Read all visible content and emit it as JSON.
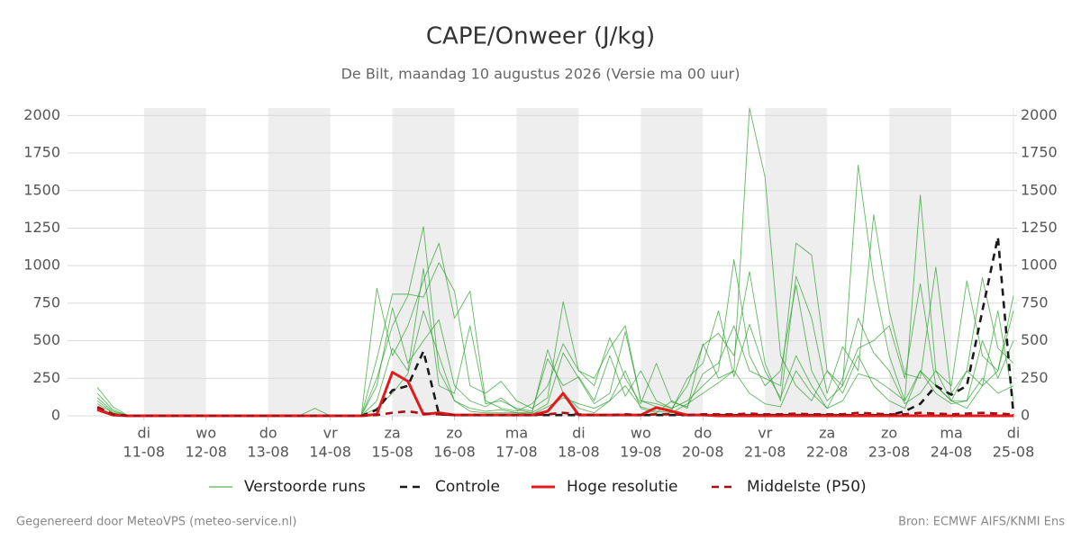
{
  "chart_data": {
    "type": "line",
    "title": "CAPE/Onweer (J/kg)",
    "subtitle": "De Bilt, maandag 10 augustus 2026 (Versie ma 00 uur)",
    "footer_left": "Gegenereerd door MeteoVPS (meteo-service.nl)",
    "footer_right": "Bron: ECMWF AIFS/KNMI Ens",
    "x": [
      0.25,
      0.5,
      0.75,
      1,
      1.25,
      1.5,
      1.75,
      2,
      2.25,
      2.5,
      2.75,
      3,
      3.25,
      3.5,
      3.75,
      4,
      4.25,
      4.5,
      4.75,
      5,
      5.25,
      5.5,
      5.75,
      6,
      6.25,
      6.5,
      6.75,
      7,
      7.25,
      7.5,
      7.75,
      8,
      8.25,
      8.5,
      8.75,
      9,
      9.25,
      9.5,
      9.75,
      10,
      10.25,
      10.5,
      10.75,
      11,
      11.25,
      11.5,
      11.75,
      12,
      12.25,
      12.5,
      12.75,
      13,
      13.25,
      13.5,
      13.75,
      14,
      14.25,
      14.5,
      14.75,
      15
    ],
    "xlim": [
      -0.23,
      15
    ],
    "xticks": [
      {
        "value": 1,
        "label": "11-08",
        "weekday": "di"
      },
      {
        "value": 2,
        "label": "12-08",
        "weekday": "wo"
      },
      {
        "value": 3,
        "label": "13-08",
        "weekday": "do"
      },
      {
        "value": 4,
        "label": "14-08",
        "weekday": "vr"
      },
      {
        "value": 5,
        "label": "15-08",
        "weekday": "za"
      },
      {
        "value": 6,
        "label": "16-08",
        "weekday": "zo"
      },
      {
        "value": 7,
        "label": "17-08",
        "weekday": "ma"
      },
      {
        "value": 8,
        "label": "18-08",
        "weekday": "di"
      },
      {
        "value": 9,
        "label": "19-08",
        "weekday": "wo"
      },
      {
        "value": 10,
        "label": "20-08",
        "weekday": "do"
      },
      {
        "value": 11,
        "label": "21-08",
        "weekday": "vr"
      },
      {
        "value": 12,
        "label": "22-08",
        "weekday": "za"
      },
      {
        "value": 13,
        "label": "23-08",
        "weekday": "zo"
      },
      {
        "value": 14,
        "label": "24-08",
        "weekday": "ma"
      },
      {
        "value": 15,
        "label": "25-08",
        "weekday": "di"
      }
    ],
    "ylim": [
      0,
      2050
    ],
    "yticks": [
      0,
      250,
      500,
      750,
      1000,
      1250,
      1500,
      1750,
      2000
    ],
    "y2lim": [
      0,
      2050
    ],
    "y2ticks": [
      0,
      250,
      500,
      750,
      1000,
      1250,
      1500,
      1750,
      2000
    ],
    "grid": true,
    "ensemble": {
      "name": "Verstoorde runs",
      "color": "#2ca02c",
      "members": [
        [
          190,
          60,
          0,
          0,
          0,
          0,
          0,
          0,
          0,
          0,
          0,
          0,
          0,
          0,
          0,
          0,
          0,
          0,
          250,
          600,
          800,
          1260,
          300,
          100,
          30,
          20,
          20,
          20,
          20,
          440,
          150,
          50,
          20,
          100,
          300,
          50,
          20,
          100,
          50,
          480,
          250,
          300,
          2050,
          1590,
          400,
          200,
          100,
          300,
          150,
          400,
          200,
          100,
          50,
          300,
          200,
          100,
          50,
          200,
          300,
          800
        ],
        [
          150,
          40,
          0,
          0,
          0,
          0,
          0,
          0,
          0,
          0,
          0,
          0,
          0,
          0,
          50,
          0,
          0,
          0,
          850,
          400,
          600,
          900,
          1150,
          650,
          830,
          100,
          50,
          30,
          80,
          200,
          480,
          300,
          200,
          520,
          250,
          80,
          350,
          90,
          60,
          280,
          350,
          600,
          300,
          250,
          200,
          1150,
          1070,
          300,
          200,
          1670,
          900,
          400,
          100,
          1470,
          300,
          200,
          900,
          400,
          300,
          700
        ],
        [
          120,
          30,
          0,
          0,
          0,
          0,
          0,
          0,
          0,
          0,
          0,
          0,
          0,
          0,
          0,
          0,
          0,
          0,
          380,
          810,
          810,
          790,
          1020,
          830,
          200,
          150,
          230,
          100,
          50,
          120,
          760,
          300,
          250,
          450,
          600,
          100,
          80,
          50,
          200,
          470,
          550,
          400,
          960,
          350,
          100,
          930,
          650,
          150,
          460,
          300,
          1340,
          700,
          280,
          250,
          990,
          150,
          300,
          920,
          450,
          350
        ],
        [
          80,
          20,
          0,
          0,
          0,
          0,
          0,
          0,
          0,
          0,
          0,
          0,
          0,
          0,
          0,
          0,
          0,
          0,
          100,
          450,
          300,
          980,
          200,
          150,
          600,
          80,
          100,
          50,
          30,
          380,
          200,
          260,
          100,
          400,
          130,
          300,
          100,
          50,
          100,
          200,
          300,
          1040,
          400,
          200,
          300,
          870,
          300,
          100,
          200,
          450,
          500,
          600,
          250,
          880,
          200,
          100,
          300,
          200,
          700,
          100
        ],
        [
          100,
          20,
          0,
          0,
          0,
          0,
          0,
          0,
          0,
          0,
          0,
          0,
          0,
          0,
          0,
          0,
          0,
          0,
          200,
          720,
          350,
          500,
          640,
          200,
          100,
          60,
          120,
          40,
          20,
          80,
          420,
          250,
          80,
          150,
          560,
          100,
          60,
          40,
          250,
          350,
          700,
          260,
          610,
          300,
          120,
          400,
          200,
          50,
          250,
          650,
          420,
          300,
          80,
          150,
          300,
          100,
          100,
          500,
          250,
          500
        ],
        [
          60,
          10,
          0,
          0,
          0,
          0,
          0,
          0,
          0,
          0,
          0,
          0,
          0,
          0,
          0,
          0,
          0,
          0,
          50,
          150,
          280,
          700,
          400,
          100,
          50,
          30,
          40,
          20,
          10,
          60,
          120,
          80,
          50,
          100,
          200,
          60,
          30,
          20,
          80,
          150,
          220,
          300,
          150,
          80,
          60,
          300,
          150,
          50,
          100,
          280,
          250,
          180,
          100,
          300,
          150,
          80,
          100,
          250,
          150,
          200
        ]
      ]
    },
    "series": [
      {
        "name": "Controle",
        "color": "#1a1a1a",
        "style": "dashed",
        "values": [
          50,
          5,
          0,
          0,
          0,
          0,
          0,
          0,
          0,
          0,
          0,
          0,
          0,
          0,
          0,
          0,
          0,
          0,
          40,
          170,
          200,
          430,
          10,
          5,
          5,
          5,
          5,
          5,
          5,
          5,
          5,
          5,
          5,
          5,
          5,
          5,
          5,
          5,
          5,
          5,
          5,
          5,
          5,
          5,
          5,
          5,
          5,
          5,
          5,
          5,
          5,
          5,
          30,
          80,
          200,
          140,
          200,
          700,
          1190,
          10
        ]
      },
      {
        "name": "Hoge resolutie",
        "color": "#e31a1c",
        "style": "solid",
        "values": [
          40,
          5,
          0,
          0,
          0,
          0,
          0,
          0,
          0,
          0,
          0,
          0,
          0,
          0,
          0,
          0,
          0,
          0,
          10,
          290,
          230,
          10,
          20,
          5,
          5,
          5,
          5,
          5,
          5,
          30,
          150,
          5,
          5,
          5,
          5,
          5,
          55,
          30,
          5,
          5,
          0,
          0,
          0,
          0,
          0,
          0,
          0,
          0,
          0,
          0,
          0,
          0,
          0,
          0,
          0,
          0,
          0,
          0,
          0,
          0
        ]
      },
      {
        "name": "Middelste (P50)",
        "color": "#a50f15",
        "style": "dashed",
        "values": [
          60,
          10,
          0,
          0,
          0,
          0,
          0,
          0,
          0,
          0,
          0,
          0,
          0,
          0,
          0,
          0,
          0,
          0,
          5,
          20,
          30,
          15,
          10,
          5,
          5,
          5,
          5,
          5,
          5,
          10,
          20,
          10,
          5,
          5,
          10,
          5,
          10,
          10,
          5,
          10,
          10,
          10,
          15,
          10,
          10,
          15,
          10,
          10,
          10,
          20,
          15,
          10,
          10,
          20,
          15,
          10,
          15,
          20,
          15,
          10
        ]
      }
    ]
  }
}
